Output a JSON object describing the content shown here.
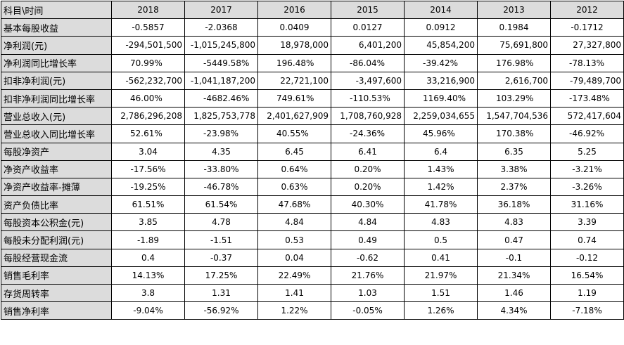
{
  "table": {
    "corner_label": "科目\\时间",
    "years": [
      "2018",
      "2017",
      "2016",
      "2015",
      "2014",
      "2013",
      "2012"
    ],
    "rows": [
      {
        "label": "基本每股收益",
        "values": [
          "-0.5857",
          "-2.0368",
          "0.0409",
          "0.0127",
          "0.0912",
          "0.1984",
          "-0.1712"
        ]
      },
      {
        "label": "净利润(元)",
        "values": [
          "-294,501,500",
          "-1,015,245,800",
          "18,978,000",
          "6,401,200",
          "45,854,200",
          "75,691,800",
          "27,327,800"
        ]
      },
      {
        "label": "净利润同比增长率",
        "values": [
          "70.99%",
          "-5449.58%",
          "196.48%",
          "-86.04%",
          "-39.42%",
          "176.98%",
          "-78.13%"
        ]
      },
      {
        "label": "扣非净利润(元)",
        "values": [
          "-562,232,700",
          "-1,041,187,200",
          "22,721,100",
          "-3,497,600",
          "33,216,900",
          "2,616,700",
          "-79,489,700"
        ]
      },
      {
        "label": "扣非净利润同比增长率",
        "values": [
          "46.00%",
          "-4682.46%",
          "749.61%",
          "-110.53%",
          "1169.40%",
          "103.29%",
          "-173.48%"
        ]
      },
      {
        "label": "营业总收入(元)",
        "values": [
          "2,786,296,208",
          "1,825,753,778",
          "2,401,627,909",
          "1,708,760,928",
          "2,259,034,655",
          "1,547,704,536",
          "572,417,604"
        ]
      },
      {
        "label": "营业总收入同比增长率",
        "values": [
          "52.61%",
          "-23.98%",
          "40.55%",
          "-24.36%",
          "45.96%",
          "170.38%",
          "-46.92%"
        ]
      },
      {
        "label": "每股净资产",
        "values": [
          "3.04",
          "4.35",
          "6.45",
          "6.41",
          "6.4",
          "6.35",
          "5.25"
        ]
      },
      {
        "label": "净资产收益率",
        "values": [
          "-17.56%",
          "-33.80%",
          "0.64%",
          "0.20%",
          "1.43%",
          "3.38%",
          "-3.21%"
        ]
      },
      {
        "label": "净资产收益率-摊薄",
        "values": [
          "-19.25%",
          "-46.78%",
          "0.63%",
          "0.20%",
          "1.42%",
          "2.37%",
          "-3.26%"
        ]
      },
      {
        "label": "资产负债比率",
        "values": [
          "61.51%",
          "61.54%",
          "47.68%",
          "40.30%",
          "41.78%",
          "36.18%",
          "31.16%"
        ]
      },
      {
        "label": "每股资本公积金(元)",
        "values": [
          "3.85",
          "4.78",
          "4.84",
          "4.84",
          "4.83",
          "4.83",
          "3.39"
        ]
      },
      {
        "label": "每股未分配利润(元)",
        "values": [
          "-1.89",
          "-1.51",
          "0.53",
          "0.49",
          "0.5",
          "0.47",
          "0.74"
        ]
      },
      {
        "label": "每股经营现金流",
        "values": [
          "0.4",
          "-0.37",
          "0.04",
          "-0.62",
          "0.41",
          "-0.1",
          "-0.12"
        ]
      },
      {
        "label": "销售毛利率",
        "values": [
          "14.13%",
          "17.25%",
          "22.49%",
          "21.76%",
          "21.97%",
          "21.34%",
          "16.54%"
        ]
      },
      {
        "label": "存货周转率",
        "values": [
          "3.8",
          "1.31",
          "1.41",
          "1.03",
          "1.51",
          "1.46",
          "1.19"
        ]
      },
      {
        "label": "销售净利率",
        "values": [
          "-9.04%",
          "-56.92%",
          "1.22%",
          "-0.05%",
          "1.26%",
          "4.34%",
          "-7.18%"
        ]
      }
    ]
  }
}
